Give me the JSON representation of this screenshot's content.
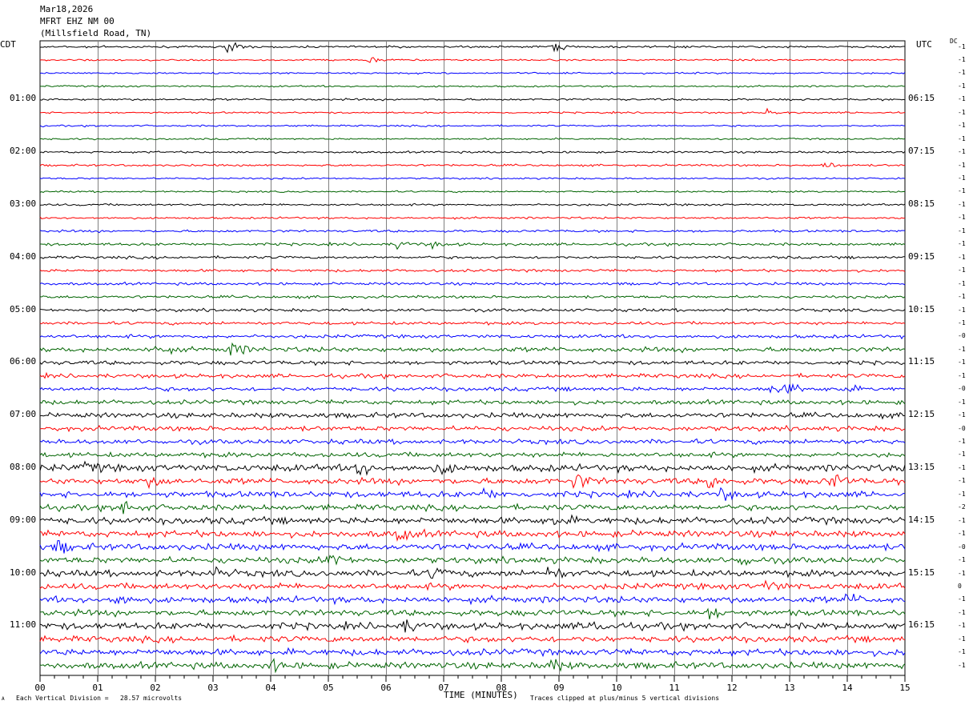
{
  "header": {
    "date": "Mar18,2026",
    "channel": "MFRT EHZ NM 00",
    "location": "(Millsfield Road, TN)"
  },
  "left_zone": "CDT",
  "right_zone": "UTC",
  "dc_label": "DC",
  "footer": {
    "scale_note": "Each Vertical Division =   28.57 microvolts",
    "xlabel": "TIME (MINUTES)",
    "clip_note": "Traces clipped at plus/minus 5 vertical divisions",
    "corner_mark": "A"
  },
  "chart_data": {
    "type": "line",
    "xlabel": "TIME (MINUTES)",
    "xlim": [
      0,
      15
    ],
    "x_ticks": [
      "00",
      "01",
      "02",
      "03",
      "04",
      "05",
      "06",
      "07",
      "08",
      "09",
      "10",
      "11",
      "12",
      "13",
      "14",
      "15"
    ],
    "trace_colors": [
      "#000000",
      "#ff0000",
      "#0000ff",
      "#006400"
    ],
    "left_hour_labels": [
      "01:00",
      "02:00",
      "03:00",
      "04:00",
      "05:00",
      "06:00",
      "07:00",
      "08:00",
      "09:00",
      "10:00",
      "11:00"
    ],
    "right_hour_labels": [
      "06:15",
      "07:15",
      "08:15",
      "09:15",
      "10:15",
      "11:15",
      "12:15",
      "13:15",
      "14:15",
      "15:15",
      "16:15"
    ],
    "dc_offsets": [
      "-1",
      "-1",
      "-1",
      "-1",
      "-1",
      "-1",
      "-1",
      "-1",
      "-1",
      "-1",
      "-1",
      "-1",
      "-1",
      "-1",
      "-1",
      "-1",
      "-1",
      "-1",
      "-1",
      "-1",
      "-1",
      "-1",
      "-0",
      "-1",
      "-1",
      "-1",
      "-0",
      "-1",
      "-1",
      "-0",
      "-1",
      "-1",
      "-1",
      "-1",
      "-1",
      "-2",
      "-1",
      "-1",
      "-0",
      "-1",
      "-1",
      "0",
      "-1",
      "-1",
      "-1",
      "-1",
      "-1",
      "-1"
    ],
    "trace_activity": [
      0.6,
      0.5,
      0.5,
      0.5,
      0.6,
      0.5,
      0.5,
      0.5,
      0.6,
      0.6,
      0.5,
      0.5,
      0.6,
      0.6,
      0.7,
      0.8,
      0.8,
      0.8,
      0.8,
      0.8,
      0.9,
      0.9,
      1.0,
      1.4,
      1.2,
      1.2,
      1.2,
      1.3,
      1.5,
      1.4,
      1.4,
      1.4,
      2.0,
      1.8,
      1.8,
      1.7,
      2.0,
      1.9,
      1.9,
      1.8,
      1.9,
      1.8,
      1.9,
      1.8,
      2.0,
      1.8,
      1.9,
      1.9
    ],
    "events": [
      {
        "trace": 0,
        "minute": 3.25,
        "amplitude": 5
      },
      {
        "trace": 0,
        "minute": 8.9,
        "amplitude": 3
      },
      {
        "trace": 1,
        "minute": 5.7,
        "amplitude": 2
      },
      {
        "trace": 5,
        "minute": 12.6,
        "amplitude": 2
      },
      {
        "trace": 9,
        "minute": 13.6,
        "amplitude": 3
      },
      {
        "trace": 15,
        "minute": 6.2,
        "amplitude": 3
      },
      {
        "trace": 15,
        "minute": 6.8,
        "amplitude": 2
      },
      {
        "trace": 23,
        "minute": 3.3,
        "amplitude": 6
      },
      {
        "trace": 23,
        "minute": 2.0,
        "amplitude": 3
      },
      {
        "trace": 26,
        "minute": 12.7,
        "amplitude": 5
      },
      {
        "trace": 26,
        "minute": 13.0,
        "amplitude": 3
      },
      {
        "trace": 26,
        "minute": 13.9,
        "amplitude": 3
      },
      {
        "trace": 34,
        "minute": 7.7,
        "amplitude": 3
      },
      {
        "trace": 32,
        "minute": 5.5,
        "amplitude": 7
      },
      {
        "trace": 32,
        "minute": 6.9,
        "amplitude": 5
      },
      {
        "trace": 32,
        "minute": 0.8,
        "amplitude": 4
      },
      {
        "trace": 33,
        "minute": 9.25,
        "amplitude": 7
      },
      {
        "trace": 33,
        "minute": 13.7,
        "amplitude": 7
      },
      {
        "trace": 33,
        "minute": 11.6,
        "amplitude": 6
      },
      {
        "trace": 33,
        "minute": 1.9,
        "amplitude": 4
      },
      {
        "trace": 34,
        "minute": 11.8,
        "amplitude": 4
      },
      {
        "trace": 35,
        "minute": 1.4,
        "amplitude": 7
      },
      {
        "trace": 36,
        "minute": 8.9,
        "amplitude": 4
      },
      {
        "trace": 37,
        "minute": 6.2,
        "amplitude": 6
      },
      {
        "trace": 38,
        "minute": 0.3,
        "amplitude": 5
      },
      {
        "trace": 39,
        "minute": 5.0,
        "amplitude": 5
      },
      {
        "trace": 39,
        "minute": 12.1,
        "amplitude": 6
      },
      {
        "trace": 40,
        "minute": 8.8,
        "amplitude": 6
      },
      {
        "trace": 40,
        "minute": 6.8,
        "amplitude": 4
      },
      {
        "trace": 40,
        "minute": 3.0,
        "amplitude": 4
      },
      {
        "trace": 41,
        "minute": 12.6,
        "amplitude": 4
      },
      {
        "trace": 42,
        "minute": 1.3,
        "amplitude": 5
      },
      {
        "trace": 42,
        "minute": 14.0,
        "amplitude": 4
      },
      {
        "trace": 43,
        "minute": 11.6,
        "amplitude": 5
      },
      {
        "trace": 44,
        "minute": 6.3,
        "amplitude": 5
      },
      {
        "trace": 44,
        "minute": 9.6,
        "amplitude": 6
      },
      {
        "trace": 47,
        "minute": 8.8,
        "amplitude": 6
      },
      {
        "trace": 47,
        "minute": 4.0,
        "amplitude": 4
      }
    ]
  }
}
